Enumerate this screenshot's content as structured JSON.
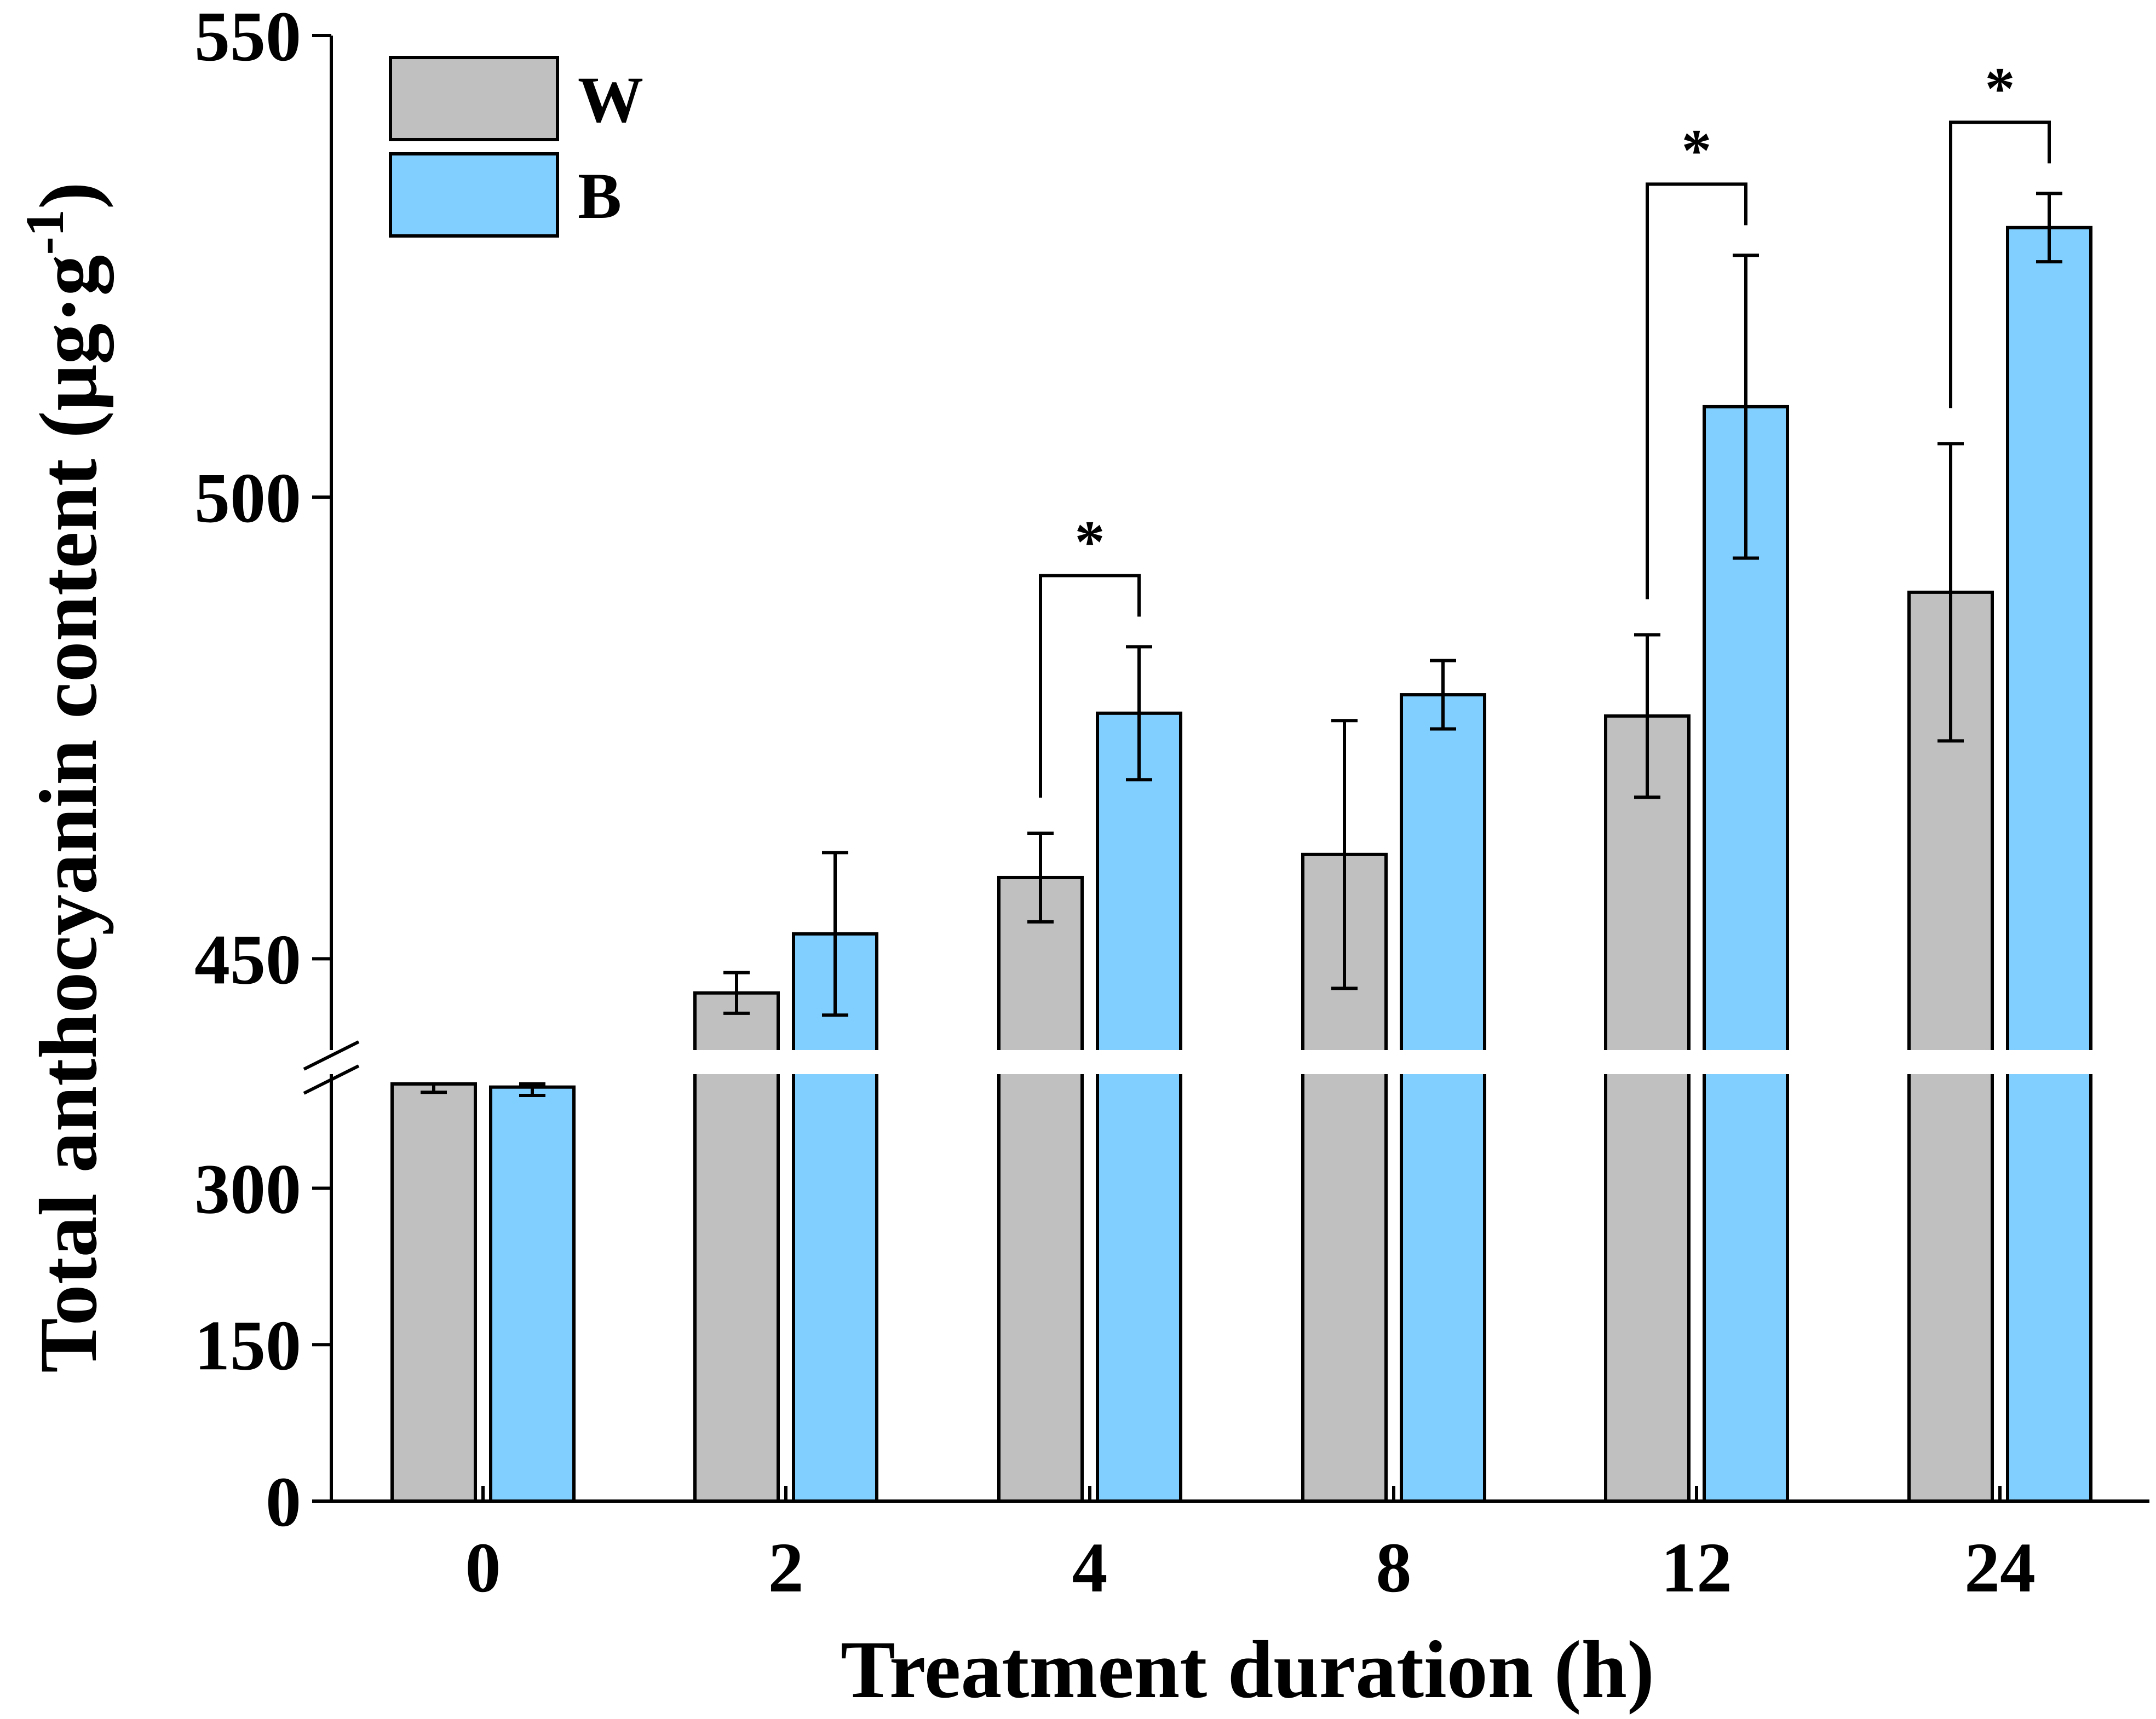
{
  "chart_data": {
    "type": "bar",
    "title": "",
    "xlabel": "Treatment duration (h)",
    "ylabel": "Total anthocyanin content (μg·g",
    "ylabel_superscript": "-1",
    "ylabel_suffix": ")",
    "categories": [
      "0",
      "2",
      "4",
      "8",
      "12",
      "24"
    ],
    "series": [
      {
        "name": "W",
        "color": "#c0c0c0",
        "values": [
          400,
          446.3,
          458.8,
          461.3,
          476.3,
          489.7
        ],
        "errors": [
          8,
          2.2,
          4.8,
          14.5,
          8.8,
          16.1
        ]
      },
      {
        "name": "B",
        "color": "#80cfff",
        "values": [
          397,
          452.7,
          476.6,
          478.6,
          509.8,
          529.2
        ],
        "errors": [
          8,
          8.8,
          7.2,
          3.7,
          16.4,
          3.7
        ]
      }
    ],
    "axis_break": {
      "lower_range": [
        0,
        400
      ],
      "upper_range": [
        440,
        550
      ],
      "lower_ticks": [
        0,
        150,
        300
      ],
      "upper_ticks": [
        450,
        500,
        550
      ]
    },
    "significance": [
      {
        "category": "4",
        "label": "*"
      },
      {
        "category": "12",
        "label": "*"
      },
      {
        "category": "24",
        "label": "*"
      }
    ],
    "legend": {
      "position": "top-left",
      "entries": [
        "W",
        "B"
      ]
    }
  }
}
